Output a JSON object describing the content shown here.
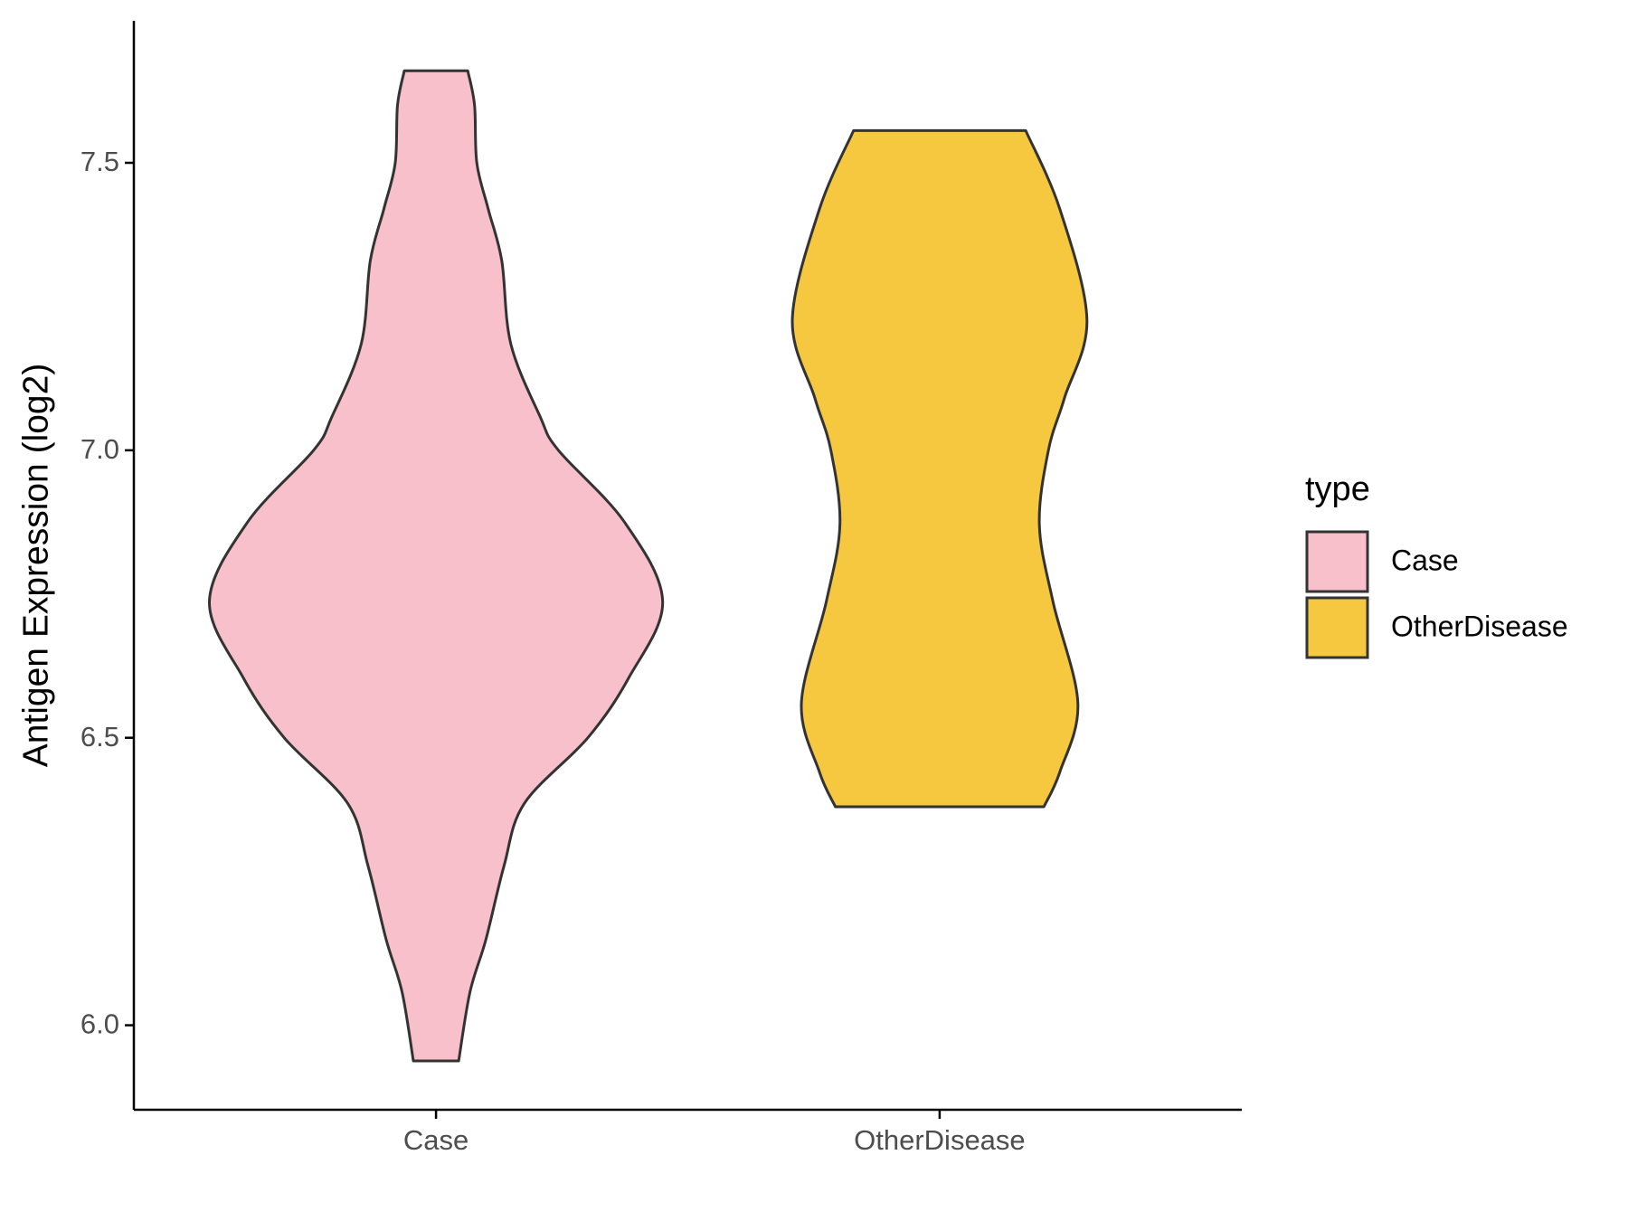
{
  "chart_data": {
    "type": "violin",
    "y_axis_label": "Antigen Expression (log2)",
    "categories": [
      "Case",
      "OtherDisease"
    ],
    "legend_title": "type",
    "series": [
      {
        "name": "Case",
        "color": "#f7c0cb",
        "y": [
          7.66,
          7.6,
          7.5,
          7.42,
          7.33,
          7.185,
          7.058,
          7.0,
          6.876,
          6.737,
          6.604,
          6.5,
          6.386,
          6.277,
          6.149,
          6.058,
          5.938
        ],
        "widths": [
          0.14,
          0.17,
          0.18,
          0.23,
          0.29,
          0.33,
          0.46,
          0.54,
          0.83,
          1.0,
          0.85,
          0.67,
          0.39,
          0.3,
          0.22,
          0.15,
          0.1
        ]
      },
      {
        "name": "OtherDisease",
        "color": "#f5c83f",
        "y": [
          7.556,
          7.42,
          7.227,
          7.09,
          7.0,
          6.871,
          6.737,
          6.56,
          6.44,
          6.38
        ],
        "widths": [
          0.38,
          0.53,
          0.65,
          0.55,
          0.48,
          0.44,
          0.5,
          0.61,
          0.53,
          0.46
        ]
      }
    ],
    "ylim": [
      5.853,
      7.747
    ],
    "yticks": [
      {
        "value": 6,
        "label": "6.0"
      },
      6.5,
      {
        "value": 7,
        "label": "7.0"
      },
      7.5
    ]
  }
}
